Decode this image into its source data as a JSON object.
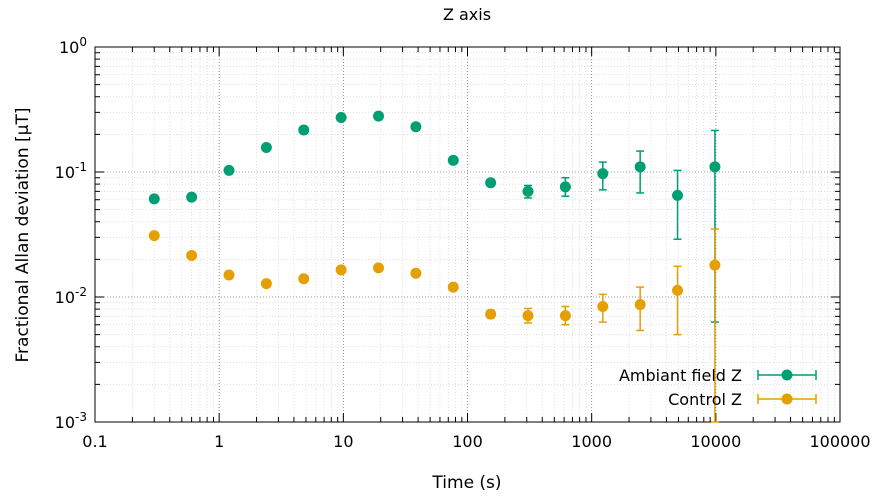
{
  "chart_data": {
    "type": "scatter",
    "title": "Z axis",
    "xlabel": "Time (s)",
    "ylabel": "Fractional Allan deviation [µT]",
    "x_scale": "log",
    "y_scale": "log",
    "xlim": [
      0.1,
      100000
    ],
    "ylim": [
      0.001,
      1
    ],
    "grid": true,
    "legend_position": "bottom-right",
    "x_ticks": [
      {
        "value": 0.1,
        "label": "0.1"
      },
      {
        "value": 1,
        "label": "1"
      },
      {
        "value": 10,
        "label": "10"
      },
      {
        "value": 100,
        "label": "100"
      },
      {
        "value": 1000,
        "label": "1000"
      },
      {
        "value": 10000,
        "label": "10000"
      },
      {
        "value": 100000,
        "label": "100000"
      }
    ],
    "y_ticks": [
      {
        "value": 0.001,
        "base": "10",
        "exp": "-3"
      },
      {
        "value": 0.01,
        "base": "10",
        "exp": "-2"
      },
      {
        "value": 0.1,
        "base": "10",
        "exp": "-1"
      },
      {
        "value": 1,
        "base": "10",
        "exp": "0"
      }
    ],
    "series": [
      {
        "name": "Ambiant field Z",
        "color": "#009e73",
        "points": [
          {
            "x": 0.3,
            "y": 0.061,
            "lo": 0.059,
            "hi": 0.063
          },
          {
            "x": 0.6,
            "y": 0.063,
            "lo": 0.061,
            "hi": 0.065
          },
          {
            "x": 1.2,
            "y": 0.103,
            "lo": 0.1,
            "hi": 0.106
          },
          {
            "x": 2.4,
            "y": 0.157,
            "lo": 0.152,
            "hi": 0.162
          },
          {
            "x": 4.8,
            "y": 0.217,
            "lo": 0.21,
            "hi": 0.224
          },
          {
            "x": 9.6,
            "y": 0.273,
            "lo": 0.264,
            "hi": 0.282
          },
          {
            "x": 19.2,
            "y": 0.28,
            "lo": 0.27,
            "hi": 0.29
          },
          {
            "x": 38.4,
            "y": 0.23,
            "lo": 0.22,
            "hi": 0.24
          },
          {
            "x": 76.8,
            "y": 0.124,
            "lo": 0.119,
            "hi": 0.129
          },
          {
            "x": 153.6,
            "y": 0.082,
            "lo": 0.077,
            "hi": 0.087
          },
          {
            "x": 307,
            "y": 0.07,
            "lo": 0.062,
            "hi": 0.078
          },
          {
            "x": 614,
            "y": 0.076,
            "lo": 0.064,
            "hi": 0.09
          },
          {
            "x": 1229,
            "y": 0.097,
            "lo": 0.072,
            "hi": 0.12
          },
          {
            "x": 2458,
            "y": 0.11,
            "lo": 0.068,
            "hi": 0.147
          },
          {
            "x": 4915,
            "y": 0.065,
            "lo": 0.029,
            "hi": 0.103
          },
          {
            "x": 9830,
            "y": 0.11,
            "lo": 0.0063,
            "hi": 0.215
          }
        ]
      },
      {
        "name": "Control Z",
        "color": "#e69f00",
        "points": [
          {
            "x": 0.3,
            "y": 0.031,
            "lo": 0.0302,
            "hi": 0.0318
          },
          {
            "x": 0.6,
            "y": 0.0215,
            "lo": 0.021,
            "hi": 0.022
          },
          {
            "x": 1.2,
            "y": 0.015,
            "lo": 0.0146,
            "hi": 0.0154
          },
          {
            "x": 2.4,
            "y": 0.0128,
            "lo": 0.0124,
            "hi": 0.0132
          },
          {
            "x": 4.8,
            "y": 0.014,
            "lo": 0.0135,
            "hi": 0.0145
          },
          {
            "x": 9.6,
            "y": 0.0165,
            "lo": 0.0159,
            "hi": 0.0171
          },
          {
            "x": 19.2,
            "y": 0.0171,
            "lo": 0.0164,
            "hi": 0.0178
          },
          {
            "x": 38.4,
            "y": 0.0155,
            "lo": 0.0148,
            "hi": 0.0162
          },
          {
            "x": 76.8,
            "y": 0.012,
            "lo": 0.0114,
            "hi": 0.0126
          },
          {
            "x": 153.6,
            "y": 0.0073,
            "lo": 0.0068,
            "hi": 0.0078
          },
          {
            "x": 307,
            "y": 0.0071,
            "lo": 0.0062,
            "hi": 0.0081
          },
          {
            "x": 614,
            "y": 0.0071,
            "lo": 0.006,
            "hi": 0.0084
          },
          {
            "x": 1229,
            "y": 0.0084,
            "lo": 0.0063,
            "hi": 0.0105
          },
          {
            "x": 2458,
            "y": 0.0087,
            "lo": 0.0054,
            "hi": 0.012
          },
          {
            "x": 4915,
            "y": 0.0113,
            "lo": 0.005,
            "hi": 0.0176
          },
          {
            "x": 9830,
            "y": 0.018,
            "lo": 0.001,
            "hi": 0.035
          }
        ]
      }
    ]
  }
}
